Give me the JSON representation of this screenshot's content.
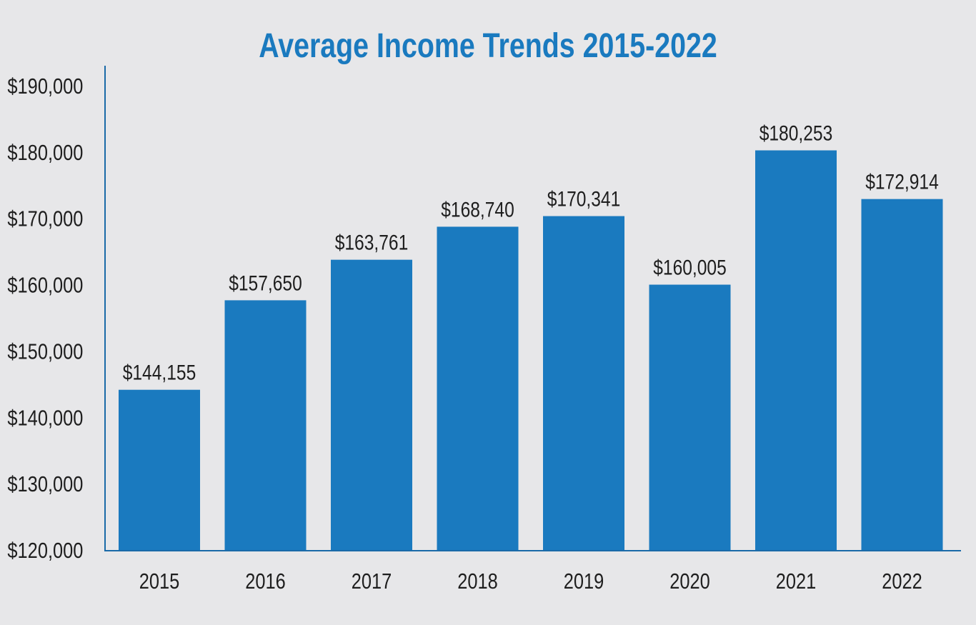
{
  "chart_data": {
    "type": "bar",
    "title": "Average Income Trends 2015-2022",
    "xlabel": "",
    "ylabel": "",
    "categories": [
      "2015",
      "2016",
      "2017",
      "2018",
      "2019",
      "2020",
      "2021",
      "2022"
    ],
    "values": [
      144155,
      157650,
      163761,
      168740,
      170341,
      160005,
      180253,
      172914
    ],
    "data_labels": [
      "$144,155",
      "$157,650",
      "$163,761",
      "$168,740",
      "$170,341",
      "$160,005",
      "$180,253",
      "$172,914"
    ],
    "ylim": [
      120000,
      190000
    ],
    "yticks": [
      120000,
      130000,
      140000,
      150000,
      160000,
      170000,
      180000,
      190000
    ],
    "ytick_labels": [
      "$120,000",
      "$130,000",
      "$140,000",
      "$150,000",
      "$160,000",
      "$170,000",
      "$180,000",
      "$190,000"
    ],
    "grid": false,
    "legend": "none",
    "colors": {
      "bar": "#1a7abf",
      "title": "#1a7abf",
      "background": "#e7e7e9"
    }
  }
}
